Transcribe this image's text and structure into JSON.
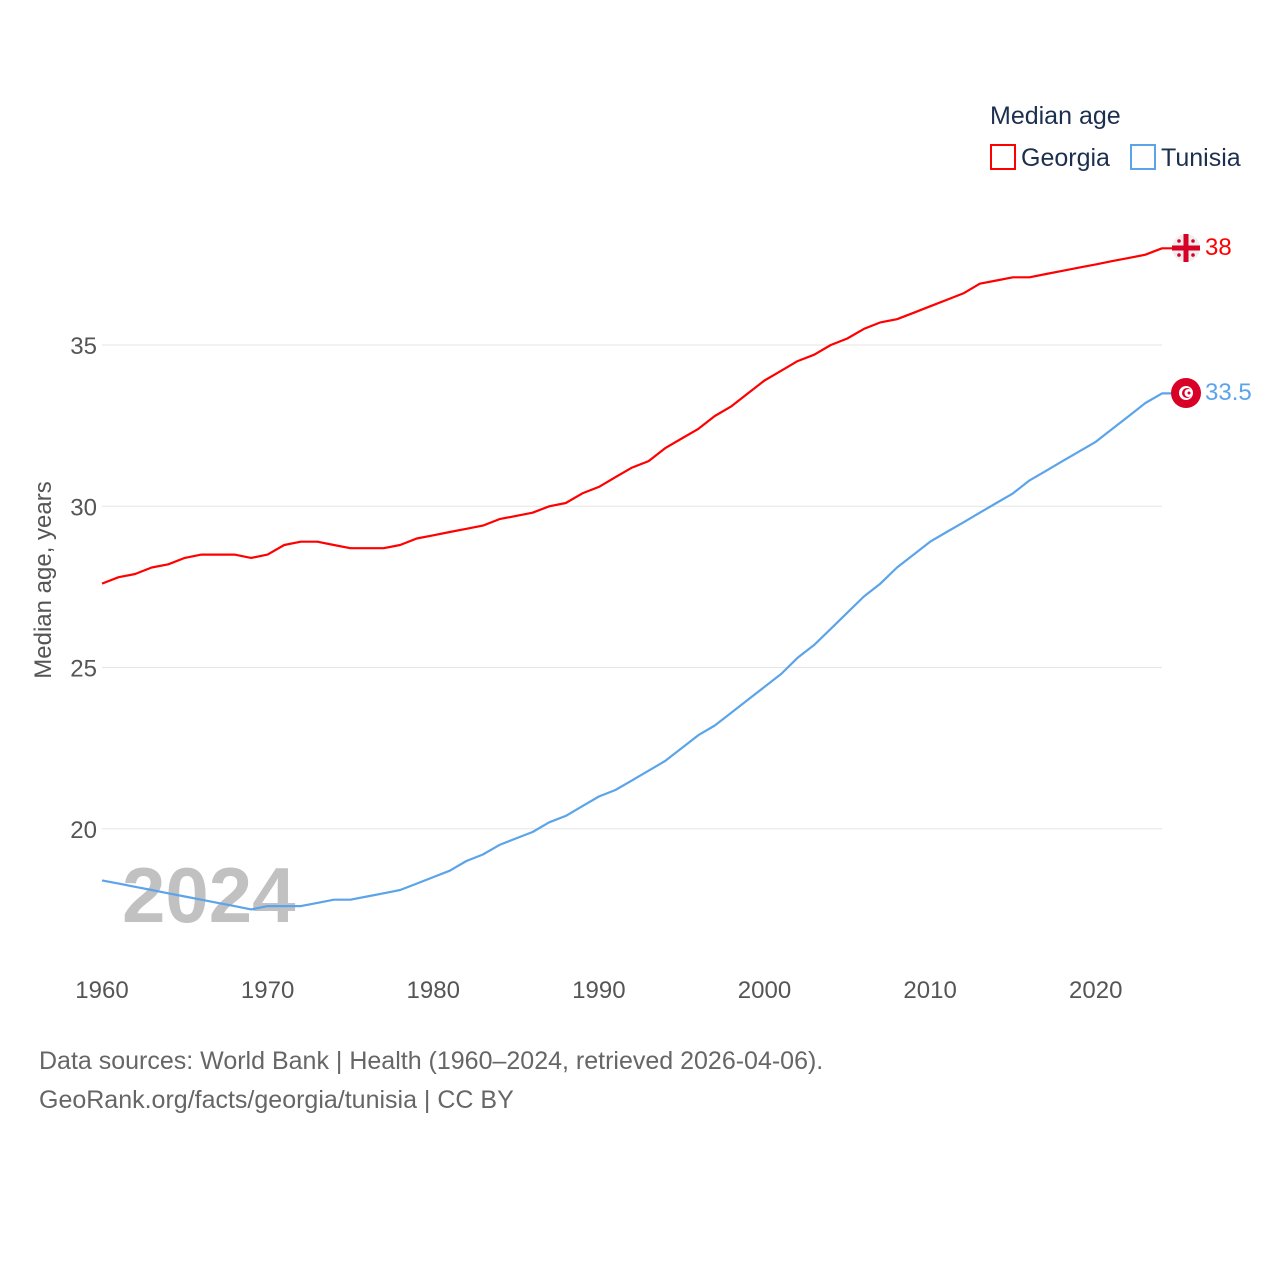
{
  "chart_data": {
    "type": "line",
    "title": "Median age",
    "xlabel": "",
    "ylabel": "Median age, years",
    "xlim": [
      1960,
      2024
    ],
    "ylim": [
      16.5,
      39.5
    ],
    "x_ticks": [
      1960,
      1970,
      1980,
      1990,
      2000,
      2010,
      2020
    ],
    "y_ticks": [
      20,
      25,
      30,
      35
    ],
    "grid": true,
    "legend_placement": "top-right",
    "year_watermark": "2024",
    "x": [
      1960,
      1961,
      1962,
      1963,
      1964,
      1965,
      1966,
      1967,
      1968,
      1969,
      1970,
      1971,
      1972,
      1973,
      1974,
      1975,
      1976,
      1977,
      1978,
      1979,
      1980,
      1981,
      1982,
      1983,
      1984,
      1985,
      1986,
      1987,
      1988,
      1989,
      1990,
      1991,
      1992,
      1993,
      1994,
      1995,
      1996,
      1997,
      1998,
      1999,
      2000,
      2001,
      2002,
      2003,
      2004,
      2005,
      2006,
      2007,
      2008,
      2009,
      2010,
      2011,
      2012,
      2013,
      2014,
      2015,
      2016,
      2017,
      2018,
      2019,
      2020,
      2021,
      2022,
      2023,
      2024
    ],
    "series": [
      {
        "name": "Georgia",
        "color": "#ff0000",
        "end_label": "38",
        "flag": "georgia-flag",
        "values": [
          27.6,
          27.8,
          27.9,
          28.1,
          28.2,
          28.4,
          28.5,
          28.5,
          28.5,
          28.4,
          28.5,
          28.8,
          28.9,
          28.9,
          28.8,
          28.7,
          28.7,
          28.7,
          28.8,
          29.0,
          29.1,
          29.2,
          29.3,
          29.4,
          29.6,
          29.7,
          29.8,
          30.0,
          30.1,
          30.4,
          30.6,
          30.9,
          31.2,
          31.4,
          31.8,
          32.1,
          32.4,
          32.8,
          33.1,
          33.5,
          33.9,
          34.2,
          34.5,
          34.7,
          35.0,
          35.2,
          35.5,
          35.7,
          35.8,
          36.0,
          36.2,
          36.4,
          36.6,
          36.9,
          37.0,
          37.1,
          37.1,
          37.2,
          37.3,
          37.4,
          37.5,
          37.6,
          37.7,
          37.8,
          38.0
        ]
      },
      {
        "name": "Tunisia",
        "color": "#5ba4ea",
        "end_label": "33.5",
        "flag": "tunisia-flag",
        "values": [
          18.4,
          18.3,
          18.2,
          18.1,
          18.0,
          17.9,
          17.8,
          17.7,
          17.6,
          17.5,
          17.6,
          17.6,
          17.6,
          17.7,
          17.8,
          17.8,
          17.9,
          18.0,
          18.1,
          18.3,
          18.5,
          18.7,
          19.0,
          19.2,
          19.5,
          19.7,
          19.9,
          20.2,
          20.4,
          20.7,
          21.0,
          21.2,
          21.5,
          21.8,
          22.1,
          22.5,
          22.9,
          23.2,
          23.6,
          24.0,
          24.4,
          24.8,
          25.3,
          25.7,
          26.2,
          26.7,
          27.2,
          27.6,
          28.1,
          28.5,
          28.9,
          29.2,
          29.5,
          29.8,
          30.1,
          30.4,
          30.8,
          31.1,
          31.4,
          31.7,
          32.0,
          32.4,
          32.8,
          33.2,
          33.5
        ]
      }
    ]
  },
  "footer": {
    "line1": "Data sources: World Bank | Health (1960–2024, retrieved 2026-04-06).",
    "line2": "GeoRank.org/facts/georgia/tunisia | CC BY"
  }
}
